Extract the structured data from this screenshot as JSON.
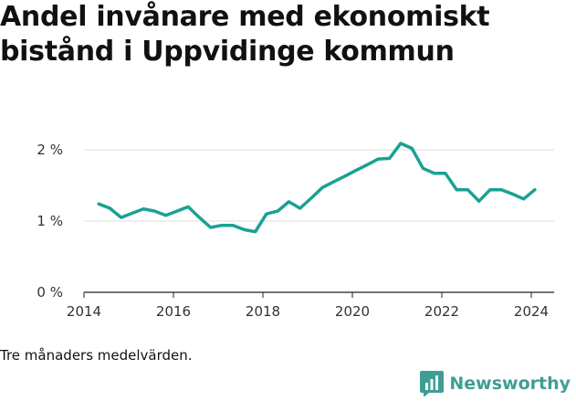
{
  "title_lines": [
    "Andel invånare med ekonomiskt",
    "bistånd i Uppvidinge kommun"
  ],
  "note": "Tre månaders medelvärden.",
  "brand": {
    "name": "Newsworthy",
    "icon": "bar-chart-icon",
    "color": "#3f9e94"
  },
  "chart_data": {
    "type": "line",
    "title": "Andel invånare med ekonomiskt bistånd i Uppvidinge kommun",
    "xlabel": "",
    "ylabel": "",
    "xlim": [
      2014,
      2024.6
    ],
    "ylim": [
      0,
      2.2
    ],
    "x_ticks": [
      {
        "value": 2014,
        "label": "2014"
      },
      {
        "value": 2016,
        "label": "2016"
      },
      {
        "value": 2018,
        "label": "2018"
      },
      {
        "value": 2020,
        "label": "2020"
      },
      {
        "value": 2022,
        "label": "2022"
      },
      {
        "value": 2024,
        "label": "2024"
      }
    ],
    "y_ticks": [
      {
        "value": 0,
        "label": "0 %"
      },
      {
        "value": 1,
        "label": "1 %"
      },
      {
        "value": 2,
        "label": "2 %"
      }
    ],
    "grid": true,
    "legend": "none",
    "series": [
      {
        "color": "#1aa192",
        "points": [
          [
            2014.33,
            1.24
          ],
          [
            2014.58,
            1.18
          ],
          [
            2014.83,
            1.05
          ],
          [
            2015.08,
            1.11
          ],
          [
            2015.33,
            1.17
          ],
          [
            2015.58,
            1.14
          ],
          [
            2015.83,
            1.08
          ],
          [
            2016.08,
            1.14
          ],
          [
            2016.33,
            1.2
          ],
          [
            2016.58,
            1.05
          ],
          [
            2016.83,
            0.91
          ],
          [
            2017.08,
            0.94
          ],
          [
            2017.33,
            0.94
          ],
          [
            2017.58,
            0.88
          ],
          [
            2017.83,
            0.85
          ],
          [
            2018.08,
            1.1
          ],
          [
            2018.33,
            1.14
          ],
          [
            2018.58,
            1.27
          ],
          [
            2018.83,
            1.18
          ],
          [
            2019.08,
            1.32
          ],
          [
            2019.33,
            1.47
          ],
          [
            2019.58,
            1.55
          ],
          [
            2019.83,
            1.63
          ],
          [
            2020.08,
            1.71
          ],
          [
            2020.33,
            1.79
          ],
          [
            2020.58,
            1.87
          ],
          [
            2020.83,
            1.88
          ],
          [
            2021.08,
            2.09
          ],
          [
            2021.33,
            2.02
          ],
          [
            2021.58,
            1.74
          ],
          [
            2021.83,
            1.67
          ],
          [
            2022.08,
            1.67
          ],
          [
            2022.33,
            1.44
          ],
          [
            2022.58,
            1.44
          ],
          [
            2022.83,
            1.28
          ],
          [
            2023.08,
            1.44
          ],
          [
            2023.33,
            1.44
          ],
          [
            2023.58,
            1.38
          ],
          [
            2023.83,
            1.31
          ],
          [
            2024.08,
            1.44
          ]
        ]
      }
    ]
  }
}
